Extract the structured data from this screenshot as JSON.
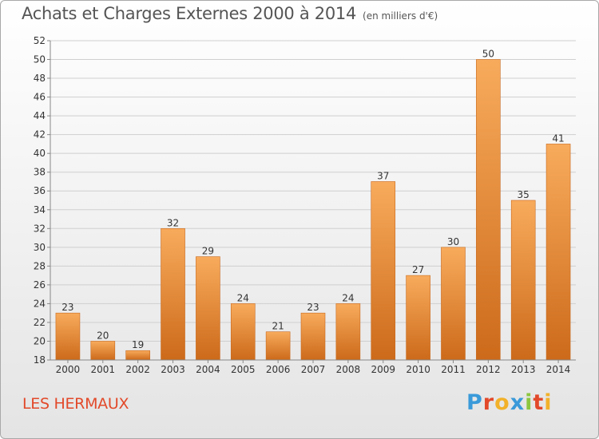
{
  "header": {
    "title": "Achats et Charges Externes 2000 à 2014",
    "unit": "(en milliers d'€)"
  },
  "footer": {
    "commune": "LES HERMAUX",
    "logo_letters": [
      {
        "ch": "P",
        "color": "#3a9ad9"
      },
      {
        "ch": "r",
        "color": "#e2492a"
      },
      {
        "ch": "o",
        "color": "#f2b12a"
      },
      {
        "ch": "x",
        "color": "#3a9ad9"
      },
      {
        "ch": "i",
        "color": "#8cc63f"
      },
      {
        "ch": "t",
        "color": "#e2492a"
      },
      {
        "ch": "i",
        "color": "#f2b12a"
      }
    ]
  },
  "colors": {
    "bar_light": "#f8ab5c",
    "bar_dark": "#cc6a1a",
    "grid": "#cfcfcf",
    "text": "#333333"
  },
  "chart_data": {
    "type": "bar",
    "title": "Achats et Charges Externes 2000 à 2014",
    "categories": [
      "2000",
      "2001",
      "2002",
      "2003",
      "2004",
      "2005",
      "2006",
      "2007",
      "2008",
      "2009",
      "2010",
      "2011",
      "2012",
      "2013",
      "2014"
    ],
    "values": [
      23,
      20,
      19,
      32,
      29,
      24,
      21,
      23,
      24,
      37,
      27,
      30,
      50,
      35,
      41
    ],
    "ylim": [
      18,
      52
    ],
    "yticks": [
      18,
      20,
      22,
      24,
      26,
      28,
      30,
      32,
      34,
      36,
      38,
      40,
      42,
      44,
      46,
      48,
      50,
      52
    ],
    "grid": true,
    "data_labels": true
  }
}
